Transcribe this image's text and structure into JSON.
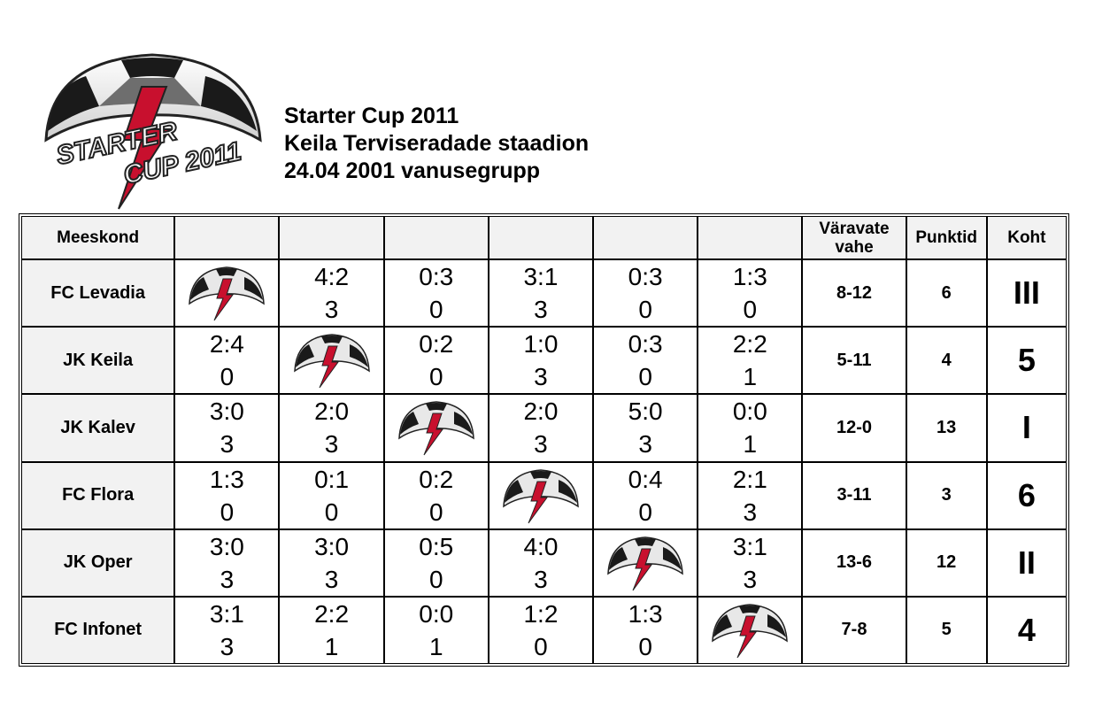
{
  "logo": {
    "word1": "STARTER",
    "word2": "CUP 2011"
  },
  "header": {
    "line1": "Starter Cup 2011",
    "line2": "Keila Terviseradade staadion",
    "line3": "24.04 2001 vanusegrupp"
  },
  "table": {
    "col_team": "Meeskond",
    "col_goal_diff": "Väravate vahe",
    "col_points": "Punktid",
    "col_place": "Koht",
    "rows": [
      {
        "team": "FC Levadia",
        "results": [
          null,
          [
            "4:2",
            "3"
          ],
          [
            "0:3",
            "0"
          ],
          [
            "3:1",
            "3"
          ],
          [
            "0:3",
            "0"
          ],
          [
            "1:3",
            "0"
          ]
        ],
        "goals": "8-12",
        "points": "6",
        "place": "III"
      },
      {
        "team": "JK Keila",
        "results": [
          [
            "2:4",
            "0"
          ],
          null,
          [
            "0:2",
            "0"
          ],
          [
            "1:0",
            "3"
          ],
          [
            "0:3",
            "0"
          ],
          [
            "2:2",
            "1"
          ]
        ],
        "goals": "5-11",
        "points": "4",
        "place": "5"
      },
      {
        "team": "JK Kalev",
        "results": [
          [
            "3:0",
            "3"
          ],
          [
            "2:0",
            "3"
          ],
          null,
          [
            "2:0",
            "3"
          ],
          [
            "5:0",
            "3"
          ],
          [
            "0:0",
            "1"
          ]
        ],
        "goals": "12-0",
        "points": "13",
        "place": "I"
      },
      {
        "team": "FC Flora",
        "results": [
          [
            "1:3",
            "0"
          ],
          [
            "0:1",
            "0"
          ],
          [
            "0:2",
            "0"
          ],
          null,
          [
            "0:4",
            "0"
          ],
          [
            "2:1",
            "3"
          ]
        ],
        "goals": "3-11",
        "points": "3",
        "place": "6"
      },
      {
        "team": "JK Oper",
        "results": [
          [
            "3:0",
            "3"
          ],
          [
            "3:0",
            "3"
          ],
          [
            "0:5",
            "0"
          ],
          [
            "4:0",
            "3"
          ],
          null,
          [
            "3:1",
            "3"
          ]
        ],
        "goals": "13-6",
        "points": "12",
        "place": "II"
      },
      {
        "team": "FC Infonet",
        "results": [
          [
            "3:1",
            "3"
          ],
          [
            "2:2",
            "1"
          ],
          [
            "0:0",
            "1"
          ],
          [
            "1:2",
            "0"
          ],
          [
            "1:3",
            "0"
          ],
          null
        ],
        "goals": "7-8",
        "points": "5",
        "place": "4"
      }
    ]
  },
  "colors": {
    "header_gray": "#f2f2f2",
    "logo_red": "#c8102e",
    "logo_dark": "#1a1a1a"
  }
}
